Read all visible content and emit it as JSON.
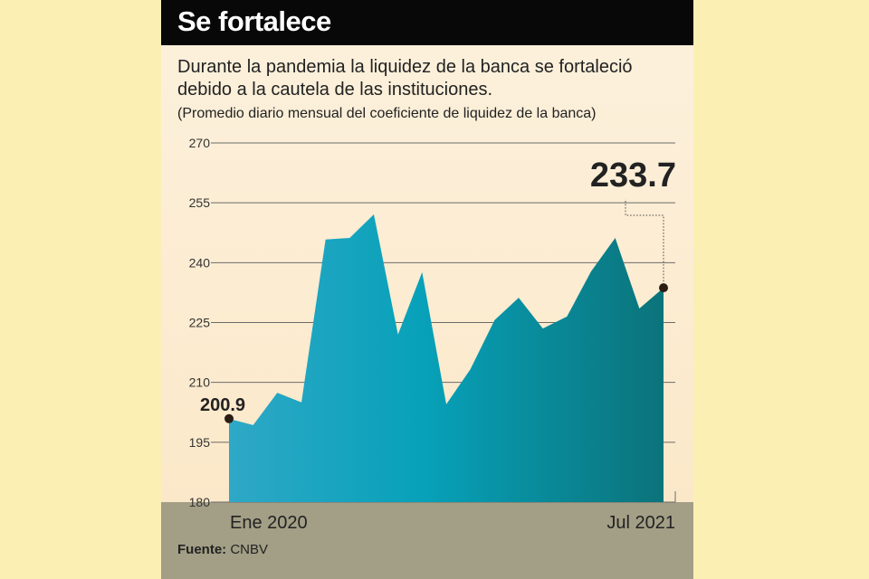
{
  "chart_data": {
    "type": "area",
    "title": "Se fortalece",
    "subtitle": "Durante la pandemia la liquidez de la banca se fortaleció debido a la cautela de las instituciones.",
    "note": "(Promedio diario mensual del coeficiente de liquidez de la banca)",
    "ylim": [
      180,
      270
    ],
    "yticks": [
      "270",
      "255",
      "240",
      "225",
      "210",
      "195",
      "180"
    ],
    "x_start_label": "Ene 2020",
    "x_end_label": "Jul 2021",
    "x": [
      "2020-01",
      "2020-02",
      "2020-03",
      "2020-04",
      "2020-05",
      "2020-06",
      "2020-07",
      "2020-08",
      "2020-09",
      "2020-10",
      "2020-11",
      "2020-12",
      "2021-01",
      "2021-02",
      "2021-03",
      "2021-04",
      "2021-05",
      "2021-06",
      "2021-07"
    ],
    "values": [
      200.9,
      199.3,
      207.4,
      205.0,
      245.8,
      246.2,
      252.1,
      222.0,
      237.6,
      204.5,
      213.3,
      225.6,
      231.2,
      223.5,
      226.5,
      237.8,
      246.2,
      228.5,
      233.7
    ],
    "first_label": "200.9",
    "last_label": "233.7",
    "grid": true,
    "colors": {
      "area_start": "#2ea8c6",
      "area_mid": "#07a1b9",
      "area_end": "#0b737a",
      "grid": "#6b6b6b"
    }
  },
  "source_label": "Fuente:",
  "source_value": "CNBV"
}
